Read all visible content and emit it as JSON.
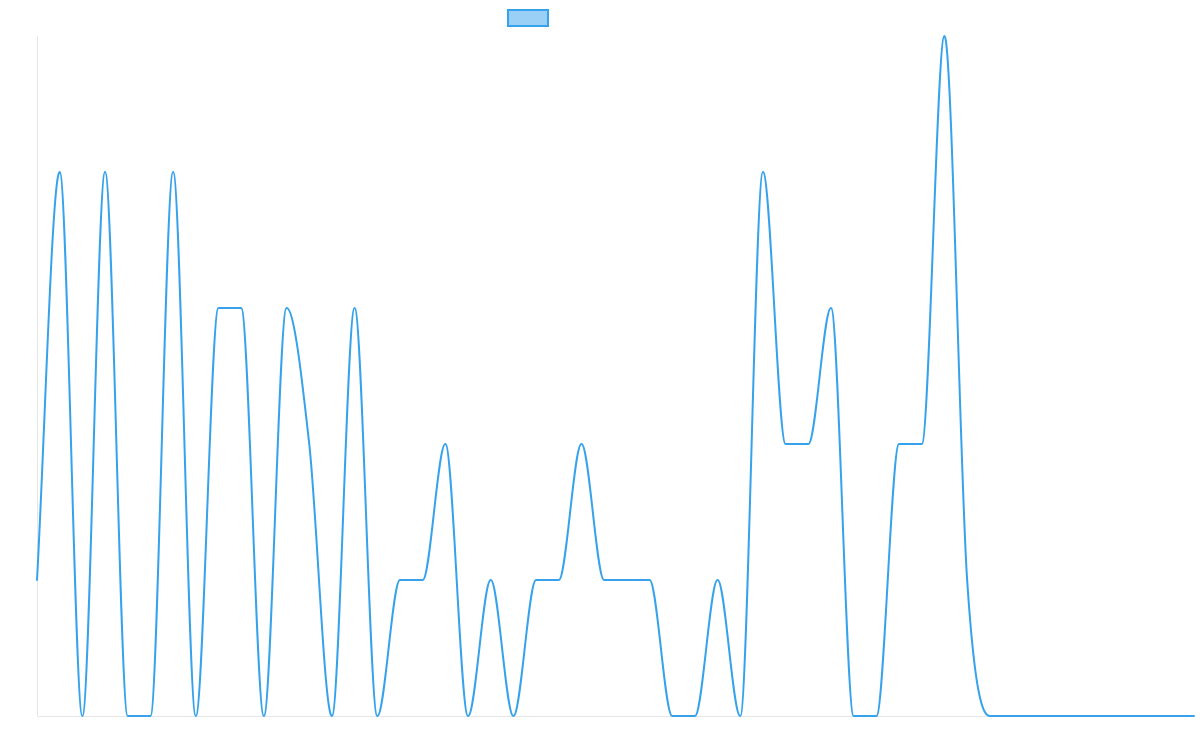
{
  "chart_data": {
    "type": "line",
    "title": "",
    "xlabel": "",
    "ylabel": "",
    "grid": false,
    "legend": "top-center",
    "x": [
      0,
      1,
      2,
      3,
      4,
      5,
      6,
      7,
      8,
      9,
      10,
      11,
      12,
      13,
      14,
      15,
      16,
      17,
      18,
      19,
      20,
      21,
      22,
      23,
      24,
      25,
      26,
      27,
      28,
      29,
      30,
      31,
      32,
      33,
      34,
      35,
      36,
      37,
      38,
      39,
      40,
      41,
      42,
      43,
      44,
      45,
      46,
      47,
      48,
      49,
      50,
      51
    ],
    "ylim": [
      0,
      5
    ],
    "series": [
      {
        "name": "",
        "color": "#36a2eb",
        "fill": "#9ad0f5",
        "values": [
          1,
          4,
          0,
          4,
          0,
          0,
          4,
          0,
          3,
          3,
          0,
          3,
          2,
          0,
          3,
          0,
          1,
          1,
          2,
          0,
          1,
          0,
          1,
          1,
          2,
          1,
          1,
          1,
          0,
          0,
          1,
          0,
          4,
          2,
          2,
          3,
          0,
          0,
          2,
          2,
          5,
          1,
          0,
          0,
          0,
          0,
          0,
          0,
          0,
          0,
          0,
          0
        ]
      }
    ]
  }
}
